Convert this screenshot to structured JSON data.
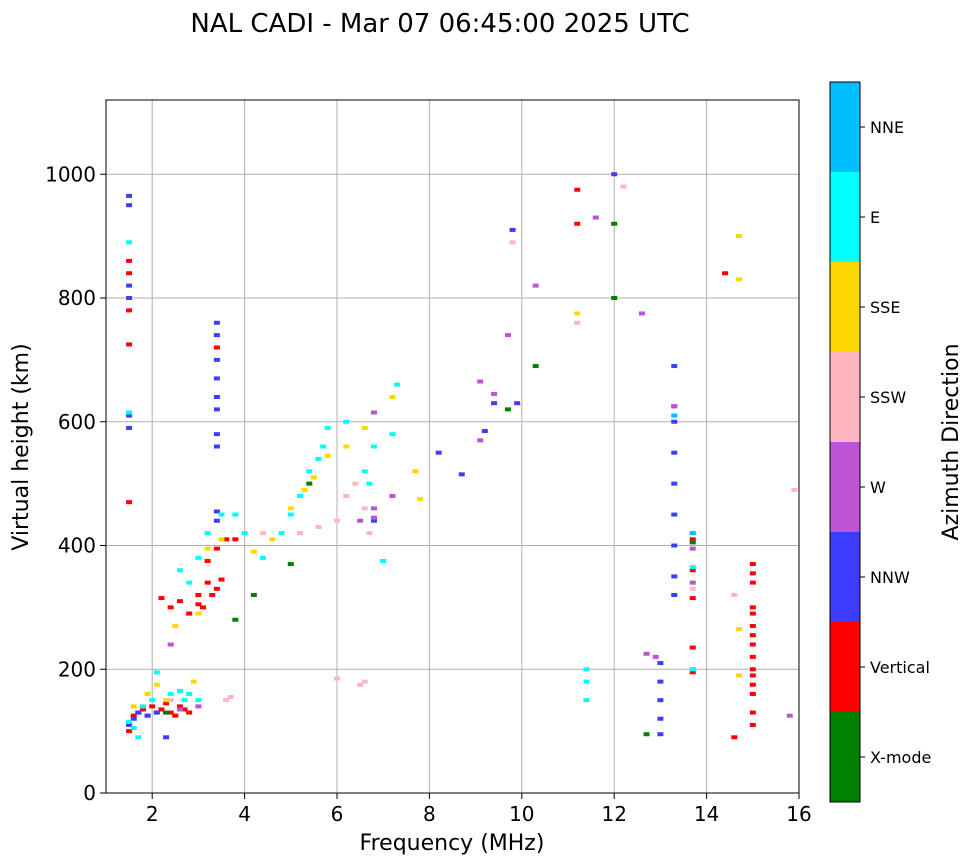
{
  "chart_data": {
    "type": "scatter",
    "title": "NAL CADI - Mar 07 06:45:00 2025 UTC",
    "xlabel": "Frequency (MHz)",
    "ylabel": "Virtual height (km)",
    "xlim": [
      1,
      16
    ],
    "ylim": [
      0,
      1120
    ],
    "xticks": [
      2,
      4,
      6,
      8,
      10,
      12,
      14,
      16
    ],
    "yticks": [
      0,
      200,
      400,
      600,
      800,
      1000
    ],
    "grid": true,
    "colorbar": {
      "title": "Azimuth Direction",
      "categories": [
        {
          "name": "X-mode",
          "color": "#008000"
        },
        {
          "name": "Vertical",
          "color": "#ff0000"
        },
        {
          "name": "NNW",
          "color": "#3c3cff"
        },
        {
          "name": "W",
          "color": "#ba55d3"
        },
        {
          "name": "SSW",
          "color": "#ffb6c1"
        },
        {
          "name": "SSE",
          "color": "#ffd700"
        },
        {
          "name": "E",
          "color": "#00ffff"
        },
        {
          "name": "NNE",
          "color": "#00bfff"
        }
      ]
    },
    "series": [
      {
        "name": "Vertical",
        "points": [
          [
            1.5,
            100
          ],
          [
            1.6,
            125
          ],
          [
            1.7,
            130
          ],
          [
            1.8,
            135
          ],
          [
            1.9,
            125
          ],
          [
            2.0,
            140
          ],
          [
            2.1,
            130
          ],
          [
            2.2,
            135
          ],
          [
            2.3,
            145
          ],
          [
            2.4,
            130
          ],
          [
            2.5,
            125
          ],
          [
            2.6,
            140
          ],
          [
            2.7,
            135
          ],
          [
            2.8,
            130
          ],
          [
            2.2,
            315
          ],
          [
            2.4,
            300
          ],
          [
            2.6,
            310
          ],
          [
            2.8,
            290
          ],
          [
            3.0,
            305
          ],
          [
            3.0,
            320
          ],
          [
            3.1,
            300
          ],
          [
            3.2,
            340
          ],
          [
            3.3,
            320
          ],
          [
            3.4,
            330
          ],
          [
            3.5,
            345
          ],
          [
            3.2,
            375
          ],
          [
            3.4,
            395
          ],
          [
            3.6,
            410
          ],
          [
            3.8,
            410
          ],
          [
            1.5,
            470
          ],
          [
            1.5,
            725
          ],
          [
            1.5,
            780
          ],
          [
            1.5,
            840
          ],
          [
            1.5,
            860
          ],
          [
            3.4,
            720
          ],
          [
            11.2,
            920
          ],
          [
            11.2,
            975
          ],
          [
            13.7,
            410
          ],
          [
            13.7,
            360
          ],
          [
            13.7,
            315
          ],
          [
            13.7,
            235
          ],
          [
            13.7,
            195
          ],
          [
            14.4,
            840
          ],
          [
            14.6,
            90
          ],
          [
            15.0,
            110
          ],
          [
            15.0,
            130
          ],
          [
            15.0,
            160
          ],
          [
            15.0,
            175
          ],
          [
            15.0,
            190
          ],
          [
            15.0,
            200
          ],
          [
            15.0,
            220
          ],
          [
            15.0,
            240
          ],
          [
            15.0,
            255
          ],
          [
            15.0,
            270
          ],
          [
            15.0,
            290
          ],
          [
            15.0,
            300
          ],
          [
            15.0,
            340
          ],
          [
            15.0,
            355
          ],
          [
            15.0,
            370
          ]
        ]
      },
      {
        "name": "NNW",
        "points": [
          [
            1.5,
            110
          ],
          [
            1.6,
            120
          ],
          [
            1.7,
            130
          ],
          [
            1.9,
            125
          ],
          [
            2.1,
            130
          ],
          [
            2.3,
            90
          ],
          [
            1.5,
            590
          ],
          [
            1.5,
            610
          ],
          [
            1.5,
            800
          ],
          [
            1.5,
            820
          ],
          [
            1.5,
            950
          ],
          [
            1.5,
            965
          ],
          [
            3.4,
            560
          ],
          [
            3.4,
            580
          ],
          [
            3.4,
            620
          ],
          [
            3.4,
            640
          ],
          [
            3.4,
            670
          ],
          [
            3.4,
            700
          ],
          [
            3.4,
            740
          ],
          [
            3.4,
            760
          ],
          [
            3.4,
            440
          ],
          [
            3.4,
            455
          ],
          [
            6.8,
            440
          ],
          [
            8.2,
            550
          ],
          [
            8.7,
            515
          ],
          [
            9.2,
            585
          ],
          [
            9.4,
            630
          ],
          [
            9.8,
            910
          ],
          [
            9.9,
            630
          ],
          [
            12.0,
            1000
          ],
          [
            13.0,
            95
          ],
          [
            13.0,
            120
          ],
          [
            13.0,
            150
          ],
          [
            13.0,
            180
          ],
          [
            13.0,
            210
          ],
          [
            13.3,
            320
          ],
          [
            13.3,
            350
          ],
          [
            13.3,
            400
          ],
          [
            13.3,
            450
          ],
          [
            13.3,
            500
          ],
          [
            13.3,
            550
          ],
          [
            13.3,
            600
          ],
          [
            13.3,
            625
          ],
          [
            13.3,
            690
          ]
        ]
      },
      {
        "name": "W",
        "points": [
          [
            2.4,
            240
          ],
          [
            2.6,
            135
          ],
          [
            3.0,
            140
          ],
          [
            6.5,
            440
          ],
          [
            6.8,
            445
          ],
          [
            6.8,
            460
          ],
          [
            6.8,
            615
          ],
          [
            7.2,
            480
          ],
          [
            9.1,
            665
          ],
          [
            9.1,
            570
          ],
          [
            9.4,
            645
          ],
          [
            9.7,
            740
          ],
          [
            10.3,
            820
          ],
          [
            11.6,
            930
          ],
          [
            12.6,
            775
          ],
          [
            12.7,
            225
          ],
          [
            12.9,
            220
          ],
          [
            13.3,
            625
          ],
          [
            13.7,
            200
          ],
          [
            13.7,
            340
          ],
          [
            13.7,
            395
          ],
          [
            15.8,
            125
          ]
        ]
      },
      {
        "name": "SSW",
        "points": [
          [
            2.4,
            150
          ],
          [
            3.6,
            150
          ],
          [
            3.7,
            155
          ],
          [
            4.4,
            420
          ],
          [
            5.2,
            420
          ],
          [
            5.6,
            430
          ],
          [
            6.0,
            440
          ],
          [
            6.2,
            480
          ],
          [
            6.4,
            500
          ],
          [
            6.6,
            460
          ],
          [
            6.7,
            420
          ],
          [
            6.0,
            185
          ],
          [
            6.5,
            175
          ],
          [
            6.6,
            180
          ],
          [
            9.8,
            890
          ],
          [
            11.2,
            760
          ],
          [
            12.2,
            980
          ],
          [
            13.7,
            330
          ],
          [
            14.6,
            320
          ],
          [
            15.9,
            490
          ]
        ]
      },
      {
        "name": "SSE",
        "points": [
          [
            1.6,
            140
          ],
          [
            1.9,
            160
          ],
          [
            2.1,
            175
          ],
          [
            2.3,
            150
          ],
          [
            2.5,
            270
          ],
          [
            2.9,
            180
          ],
          [
            3.0,
            290
          ],
          [
            3.2,
            395
          ],
          [
            3.5,
            410
          ],
          [
            4.2,
            390
          ],
          [
            4.6,
            410
          ],
          [
            5.0,
            460
          ],
          [
            5.3,
            490
          ],
          [
            5.5,
            510
          ],
          [
            5.8,
            545
          ],
          [
            6.2,
            560
          ],
          [
            6.6,
            590
          ],
          [
            7.2,
            640
          ],
          [
            7.7,
            520
          ],
          [
            7.8,
            475
          ],
          [
            11.2,
            775
          ],
          [
            14.7,
            265
          ],
          [
            14.7,
            190
          ],
          [
            14.7,
            830
          ],
          [
            14.7,
            900
          ]
        ]
      },
      {
        "name": "E",
        "points": [
          [
            1.5,
            115
          ],
          [
            1.6,
            105
          ],
          [
            1.7,
            90
          ],
          [
            1.8,
            140
          ],
          [
            2.0,
            150
          ],
          [
            2.1,
            195
          ],
          [
            2.4,
            160
          ],
          [
            2.6,
            165
          ],
          [
            2.7,
            150
          ],
          [
            2.8,
            160
          ],
          [
            3.0,
            150
          ],
          [
            2.6,
            360
          ],
          [
            2.8,
            340
          ],
          [
            3.0,
            380
          ],
          [
            3.2,
            420
          ],
          [
            3.5,
            450
          ],
          [
            3.8,
            450
          ],
          [
            4.0,
            420
          ],
          [
            4.4,
            380
          ],
          [
            4.8,
            420
          ],
          [
            5.0,
            450
          ],
          [
            5.2,
            480
          ],
          [
            5.4,
            520
          ],
          [
            5.6,
            540
          ],
          [
            5.7,
            560
          ],
          [
            5.8,
            590
          ],
          [
            6.2,
            600
          ],
          [
            6.6,
            520
          ],
          [
            6.7,
            500
          ],
          [
            6.8,
            560
          ],
          [
            7.0,
            375
          ],
          [
            7.2,
            580
          ],
          [
            7.3,
            660
          ],
          [
            1.5,
            615
          ],
          [
            1.5,
            890
          ],
          [
            11.4,
            150
          ],
          [
            11.4,
            180
          ],
          [
            11.4,
            200
          ],
          [
            13.7,
            200
          ],
          [
            13.7,
            365
          ]
        ]
      },
      {
        "name": "NNE",
        "points": [
          [
            13.7,
            420
          ],
          [
            13.3,
            610
          ]
        ]
      },
      {
        "name": "X-mode",
        "points": [
          [
            2.3,
            130
          ],
          [
            3.8,
            280
          ],
          [
            4.2,
            320
          ],
          [
            5.0,
            370
          ],
          [
            5.4,
            500
          ],
          [
            9.7,
            620
          ],
          [
            10.3,
            690
          ],
          [
            12.0,
            800
          ],
          [
            12.0,
            920
          ],
          [
            12.7,
            95
          ],
          [
            13.7,
            405
          ]
        ]
      }
    ]
  }
}
